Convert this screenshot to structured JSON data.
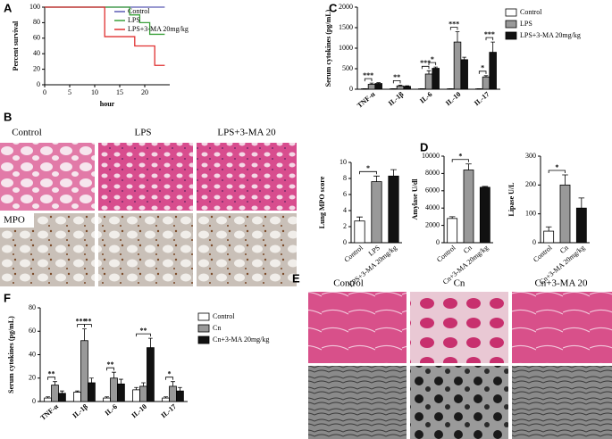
{
  "panels": [
    "A",
    "B",
    "C",
    "D",
    "E",
    "F"
  ],
  "micrographs": {
    "B": {
      "columns": [
        "Control",
        "LPS",
        "LPS+3-MA 20"
      ],
      "row_label": "MPO"
    },
    "E": {
      "columns": [
        "Control",
        "Cn",
        "Cn+3-MA 20"
      ]
    }
  },
  "chart_data": [
    {
      "type": "line",
      "step": true,
      "xlabel": "hour",
      "ylabel": "Percent survival",
      "xlim": [
        0,
        25
      ],
      "xticks": [
        0,
        5,
        10,
        15,
        20
      ],
      "ylim": [
        0,
        100
      ],
      "yticks": [
        0,
        20,
        40,
        60,
        80,
        100
      ],
      "legend": "upper right",
      "series": [
        {
          "name": "Control",
          "color": "#5a5ab4",
          "x": [
            0,
            24
          ],
          "values": [
            100,
            100
          ]
        },
        {
          "name": "LPS",
          "color": "#3aa03a",
          "x": [
            0,
            17,
            19,
            21,
            24
          ],
          "values": [
            100,
            90,
            80,
            65,
            65
          ]
        },
        {
          "name": "LPS+3-MA 20mg/kg",
          "color": "#e03030",
          "x": [
            0,
            12,
            18,
            22,
            24
          ],
          "values": [
            100,
            62,
            50,
            25,
            25
          ]
        }
      ]
    },
    {
      "type": "bar",
      "ylabel": "Serum cytokines (pg/mL)",
      "ylim": [
        0,
        2000
      ],
      "yticks": [
        0,
        500,
        1000,
        1500,
        2000
      ],
      "categories": [
        "TNF-α",
        "IL-1β",
        "IL-6",
        "IL-10",
        "IL-17"
      ],
      "legend": "right",
      "series": [
        {
          "name": "Control",
          "color": "#ffffff",
          "values": [
            10,
            10,
            10,
            10,
            10
          ],
          "errors": [
            3,
            3,
            3,
            3,
            3
          ]
        },
        {
          "name": "LPS",
          "color": "#999999",
          "values": [
            120,
            80,
            370,
            1150,
            300
          ],
          "errors": [
            30,
            20,
            80,
            250,
            30
          ]
        },
        {
          "name": "LPS+3-MA 20mg/kg",
          "color": "#111111",
          "values": [
            140,
            70,
            510,
            720,
            900
          ],
          "errors": [
            20,
            15,
            30,
            60,
            250
          ]
        }
      ],
      "significance": [
        {
          "label": "***",
          "category": 0,
          "groups": [
            0,
            1
          ]
        },
        {
          "label": "**",
          "category": 1,
          "groups": [
            0,
            1
          ]
        },
        {
          "label": "***",
          "category": 2,
          "groups": [
            0,
            1
          ]
        },
        {
          "label": "*",
          "category": 2,
          "groups": [
            1,
            2
          ]
        },
        {
          "label": "***",
          "category": 3,
          "groups": [
            0,
            1
          ]
        },
        {
          "label": "*",
          "category": 4,
          "groups": [
            0,
            1
          ]
        },
        {
          "label": "***",
          "category": 4,
          "groups": [
            1,
            2
          ]
        }
      ]
    },
    {
      "type": "bar",
      "ylabel": "Lung MPO score",
      "ylim": [
        0,
        10
      ],
      "yticks": [
        0,
        2,
        4,
        6,
        8,
        10
      ],
      "categories": [
        "Control",
        "LPS",
        "LPS+3-MA 20mg/kg"
      ],
      "colors": [
        "#ffffff",
        "#999999",
        "#111111"
      ],
      "values": [
        2.7,
        7.6,
        8.3
      ],
      "errors": [
        0.5,
        0.7,
        0.8
      ],
      "significance": [
        {
          "label": "*",
          "groups": [
            0,
            1
          ]
        }
      ]
    },
    {
      "type": "bar",
      "ylabel": "Amylase U/dl",
      "ylim": [
        0,
        10000
      ],
      "yticks": [
        0,
        2000,
        4000,
        6000,
        8000,
        10000
      ],
      "categories": [
        "Control",
        "Cn",
        "Cn+3-MA 20mg/kg"
      ],
      "colors": [
        "#ffffff",
        "#999999",
        "#111111"
      ],
      "values": [
        2800,
        8400,
        6400
      ],
      "errors": [
        200,
        700,
        100
      ],
      "significance": [
        {
          "label": "*",
          "groups": [
            0,
            1
          ]
        }
      ]
    },
    {
      "type": "bar",
      "ylabel": "Lipase U/L",
      "ylim": [
        0,
        300
      ],
      "yticks": [
        0,
        100,
        200,
        300
      ],
      "categories": [
        "Control",
        "Cn",
        "Cn+3-MA 20mg/kg"
      ],
      "colors": [
        "#ffffff",
        "#999999",
        "#111111"
      ],
      "values": [
        40,
        200,
        120
      ],
      "errors": [
        15,
        35,
        35
      ],
      "significance": [
        {
          "label": "*",
          "groups": [
            0,
            1
          ]
        }
      ]
    },
    {
      "type": "bar",
      "ylabel": "Serum cytokines (pg/mL)",
      "ylim": [
        0,
        80
      ],
      "yticks": [
        0,
        20,
        40,
        60,
        80
      ],
      "categories": [
        "TNF-α",
        "IL-1β",
        "IL-6",
        "IL-10",
        "IL-17"
      ],
      "legend": "right",
      "series": [
        {
          "name": "Control",
          "color": "#ffffff",
          "values": [
            3,
            8,
            3,
            10,
            3
          ],
          "errors": [
            1,
            1,
            1,
            2,
            1
          ]
        },
        {
          "name": "Cn",
          "color": "#999999",
          "values": [
            14,
            52,
            20,
            13,
            13
          ],
          "errors": [
            3,
            10,
            5,
            3,
            4
          ]
        },
        {
          "name": "Cn+3-MA 20mg/kg",
          "color": "#111111",
          "values": [
            7,
            16,
            15,
            46,
            9
          ],
          "errors": [
            2,
            4,
            4,
            8,
            3
          ]
        }
      ],
      "significance": [
        {
          "label": "**",
          "category": 0,
          "groups": [
            0,
            1
          ]
        },
        {
          "label": "***",
          "category": 1,
          "groups": [
            0,
            1
          ]
        },
        {
          "label": "**",
          "category": 1,
          "groups": [
            1,
            2
          ]
        },
        {
          "label": "**",
          "category": 2,
          "groups": [
            0,
            1
          ]
        },
        {
          "label": "**",
          "category": 3,
          "groups": [
            0,
            2
          ]
        },
        {
          "label": "*",
          "category": 4,
          "groups": [
            0,
            1
          ]
        }
      ]
    }
  ]
}
